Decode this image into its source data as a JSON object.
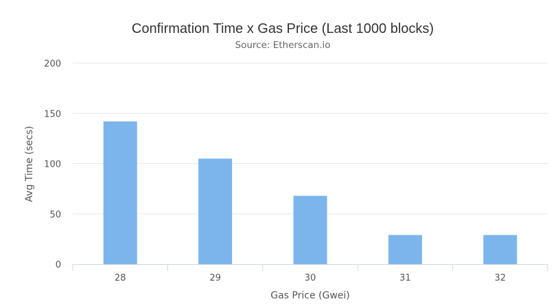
{
  "chart_data": {
    "type": "bar",
    "title": "Confirmation Time x Gas Price (Last 1000 blocks)",
    "subtitle": "Source: Etherscan.io",
    "xlabel": "Gas Price (Gwei)",
    "ylabel": "Avg Time (secs)",
    "categories": [
      "28",
      "29",
      "30",
      "31",
      "32"
    ],
    "values": [
      142,
      105,
      68,
      29,
      29
    ],
    "ylim": [
      0,
      200
    ],
    "yticks": [
      0,
      50,
      100,
      150,
      200
    ],
    "grid": true,
    "legend": "none",
    "bar_color": "#7cb5ec",
    "grid_color": "#e6e6e6",
    "axis_line_color": "#ccd6eb"
  }
}
